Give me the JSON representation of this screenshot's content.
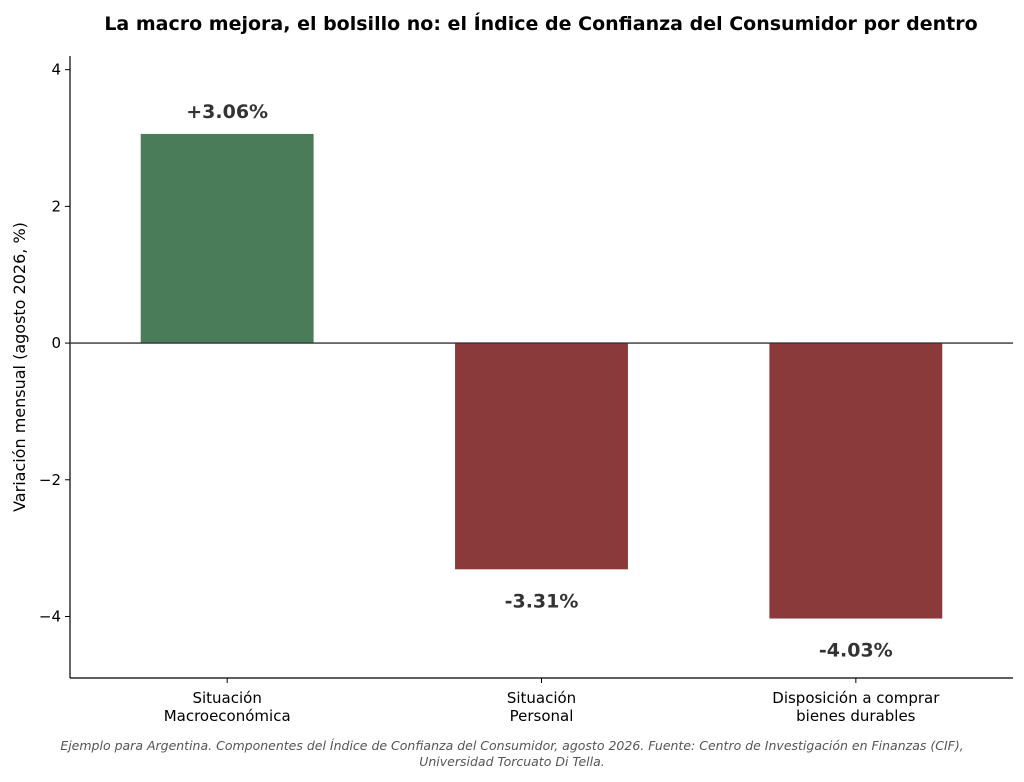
{
  "chart_data": {
    "type": "bar",
    "title": "La macro mejora, el bolsillo no: el Índice de Confianza del Consumidor por dentro",
    "xlabel": "",
    "ylabel": "Variación mensual (agosto 2026, %)",
    "categories": [
      [
        "Situación",
        "Macroeconómica"
      ],
      [
        "Situación",
        "Personal"
      ],
      [
        "Disposición a comprar",
        "bienes durables"
      ]
    ],
    "values": [
      3.06,
      -3.31,
      -4.03
    ],
    "data_labels": [
      "+3.06%",
      "-3.31%",
      "-4.03%"
    ],
    "ylim": [
      -4.9,
      4.2
    ],
    "yticks": [
      4,
      2,
      0,
      -2,
      -4
    ],
    "ytick_labels": [
      "4",
      "2",
      "0",
      "−2",
      "−4"
    ],
    "colors": {
      "positive": "#4a7c59",
      "negative": "#8b3a3c"
    },
    "grid": false,
    "legend": "none"
  },
  "footnote": [
    "Ejemplo para Argentina. Componentes del Índice de Confianza del Consumidor, agosto 2026. Fuente: Centro de Investigación en Finanzas (CIF),",
    "Universidad Torcuato Di Tella."
  ]
}
